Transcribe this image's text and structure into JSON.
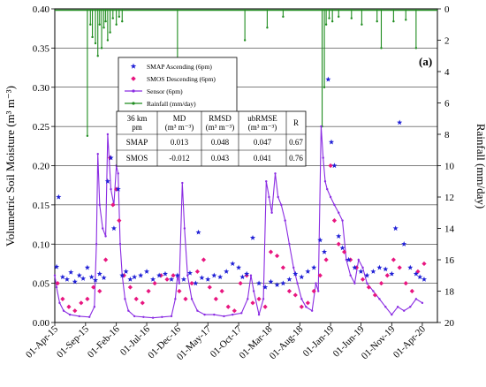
{
  "chart_data": {
    "type": "scatter",
    "panel_label": "(a)",
    "ylabel": "Volumetric Soil Moisture (m³ m⁻³)",
    "y2label": "Rainfall (mm/day)",
    "ylim": [
      0,
      0.4
    ],
    "y_ticks": [
      "0.00",
      "0.05",
      "0.10",
      "0.15",
      "0.20",
      "0.25",
      "0.30",
      "0.35",
      "0.40"
    ],
    "y2lim": [
      0,
      20
    ],
    "y2_inverted": true,
    "y2_ticks": [
      "0",
      "2",
      "4",
      "6",
      "8",
      "10",
      "12",
      "14",
      "16",
      "18",
      "20"
    ],
    "x_ticks": [
      "01-Apr-15",
      "01-Sep-15",
      "01-Feb-16",
      "01-Jul-16",
      "01-Dec-16",
      "01-May-17",
      "01-Oct-17",
      "01-Mar-18",
      "01-Aug-18",
      "01-Jan-19",
      "01-Jun-19",
      "01-Nov-19",
      "01-Apr-20"
    ],
    "grid": "horizontal",
    "legend_placement": "top-left",
    "series": [
      {
        "name": "SMAP Ascending (6pm)",
        "color": "#1f1fd6",
        "marker": "star",
        "points": [
          [
            "2015-04-10",
            0.071
          ],
          [
            "2015-04-20",
            0.16
          ],
          [
            "2015-05-10",
            0.058
          ],
          [
            "2015-06-01",
            0.055
          ],
          [
            "2015-06-20",
            0.064
          ],
          [
            "2015-07-10",
            0.052
          ],
          [
            "2015-08-01",
            0.06
          ],
          [
            "2015-08-20",
            0.056
          ],
          [
            "2015-09-10",
            0.07
          ],
          [
            "2015-10-01",
            0.058
          ],
          [
            "2015-10-20",
            0.054
          ],
          [
            "2015-11-10",
            0.062
          ],
          [
            "2015-12-01",
            0.057
          ],
          [
            "2015-12-20",
            0.18
          ],
          [
            "2016-01-05",
            0.21
          ],
          [
            "2016-01-20",
            0.12
          ],
          [
            "2016-02-10",
            0.17
          ],
          [
            "2016-03-01",
            0.06
          ],
          [
            "2016-03-20",
            0.065
          ],
          [
            "2016-04-10",
            0.055
          ],
          [
            "2016-05-01",
            0.058
          ],
          [
            "2016-06-01",
            0.06
          ],
          [
            "2016-07-01",
            0.065
          ],
          [
            "2016-08-01",
            0.055
          ],
          [
            "2016-09-01",
            0.06
          ],
          [
            "2016-10-01",
            0.062
          ],
          [
            "2016-11-01",
            0.055
          ],
          [
            "2016-12-01",
            0.06
          ],
          [
            "2017-01-01",
            0.055
          ],
          [
            "2017-02-01",
            0.063
          ],
          [
            "2017-03-01",
            0.05
          ],
          [
            "2017-03-15",
            0.115
          ],
          [
            "2017-04-01",
            0.057
          ],
          [
            "2017-05-01",
            0.055
          ],
          [
            "2017-06-01",
            0.06
          ],
          [
            "2017-07-01",
            0.058
          ],
          [
            "2017-08-01",
            0.065
          ],
          [
            "2017-09-01",
            0.075
          ],
          [
            "2017-10-01",
            0.07
          ],
          [
            "2017-10-20",
            0.058
          ],
          [
            "2017-11-10",
            0.062
          ],
          [
            "2017-12-10",
            0.108
          ],
          [
            "2018-01-10",
            0.05
          ],
          [
            "2018-02-10",
            0.045
          ],
          [
            "2018-03-10",
            0.052
          ],
          [
            "2018-04-10",
            0.048
          ],
          [
            "2018-05-10",
            0.05
          ],
          [
            "2018-06-10",
            0.055
          ],
          [
            "2018-07-10",
            0.062
          ],
          [
            "2018-08-10",
            0.058
          ],
          [
            "2018-09-10",
            0.065
          ],
          [
            "2018-10-10",
            0.07
          ],
          [
            "2018-11-10",
            0.105
          ],
          [
            "2018-12-01",
            0.09
          ],
          [
            "2018-12-20",
            0.31
          ],
          [
            "2019-01-05",
            0.23
          ],
          [
            "2019-01-20",
            0.2
          ],
          [
            "2019-02-10",
            0.11
          ],
          [
            "2019-03-01",
            0.095
          ],
          [
            "2019-04-01",
            0.08
          ],
          [
            "2019-05-01",
            0.07
          ],
          [
            "2019-06-01",
            0.065
          ],
          [
            "2019-07-01",
            0.06
          ],
          [
            "2019-08-01",
            0.065
          ],
          [
            "2019-09-01",
            0.07
          ],
          [
            "2019-10-01",
            0.068
          ],
          [
            "2019-11-01",
            0.062
          ],
          [
            "2019-11-20",
            0.12
          ],
          [
            "2019-12-10",
            0.255
          ],
          [
            "2020-01-01",
            0.1
          ],
          [
            "2020-02-01",
            0.07
          ],
          [
            "2020-03-01",
            0.062
          ],
          [
            "2020-03-20",
            0.058
          ],
          [
            "2020-04-10",
            0.055
          ]
        ]
      },
      {
        "name": "SMOS Descending (6pm)",
        "color": "#e8157f",
        "marker": "diamond",
        "points": [
          [
            "2015-04-15",
            0.05
          ],
          [
            "2015-05-10",
            0.03
          ],
          [
            "2015-06-10",
            0.02
          ],
          [
            "2015-07-10",
            0.015
          ],
          [
            "2015-08-10",
            0.025
          ],
          [
            "2015-09-10",
            0.03
          ],
          [
            "2015-10-10",
            0.045
          ],
          [
            "2015-11-10",
            0.04
          ],
          [
            "2015-12-10",
            0.08
          ],
          [
            "2016-01-01",
            0.21
          ],
          [
            "2016-01-15",
            0.15
          ],
          [
            "2016-02-01",
            0.17
          ],
          [
            "2016-02-15",
            0.13
          ],
          [
            "2016-03-10",
            0.06
          ],
          [
            "2016-04-10",
            0.045
          ],
          [
            "2016-05-10",
            0.03
          ],
          [
            "2016-06-10",
            0.025
          ],
          [
            "2016-07-10",
            0.04
          ],
          [
            "2016-08-10",
            0.05
          ],
          [
            "2016-09-10",
            0.06
          ],
          [
            "2016-10-10",
            0.055
          ],
          [
            "2016-11-10",
            0.06
          ],
          [
            "2016-12-10",
            0.04
          ],
          [
            "2017-01-10",
            0.03
          ],
          [
            "2017-02-10",
            0.05
          ],
          [
            "2017-03-10",
            0.065
          ],
          [
            "2017-04-10",
            0.08
          ],
          [
            "2017-05-10",
            0.045
          ],
          [
            "2017-06-10",
            0.03
          ],
          [
            "2017-07-10",
            0.04
          ],
          [
            "2017-08-10",
            0.02
          ],
          [
            "2017-09-10",
            0.015
          ],
          [
            "2017-10-10",
            0.05
          ],
          [
            "2017-11-10",
            0.06
          ],
          [
            "2017-12-10",
            0.025
          ],
          [
            "2018-01-10",
            0.03
          ],
          [
            "2018-02-10",
            0.02
          ],
          [
            "2018-03-10",
            0.09
          ],
          [
            "2018-04-10",
            0.085
          ],
          [
            "2018-05-10",
            0.07
          ],
          [
            "2018-06-10",
            0.04
          ],
          [
            "2018-07-10",
            0.035
          ],
          [
            "2018-08-10",
            0.02
          ],
          [
            "2018-09-10",
            0.025
          ],
          [
            "2018-10-10",
            0.04
          ],
          [
            "2018-11-10",
            0.06
          ],
          [
            "2018-12-10",
            0.08
          ],
          [
            "2019-01-01",
            0.2
          ],
          [
            "2019-01-20",
            0.13
          ],
          [
            "2019-02-10",
            0.1
          ],
          [
            "2019-03-10",
            0.09
          ],
          [
            "2019-04-10",
            0.08
          ],
          [
            "2019-05-10",
            0.07
          ],
          [
            "2019-06-10",
            0.055
          ],
          [
            "2019-07-10",
            0.045
          ],
          [
            "2019-08-10",
            0.035
          ],
          [
            "2019-09-10",
            0.05
          ],
          [
            "2019-10-10",
            0.06
          ],
          [
            "2019-11-10",
            0.08
          ],
          [
            "2019-12-10",
            0.07
          ],
          [
            "2020-01-10",
            0.05
          ],
          [
            "2020-02-10",
            0.04
          ],
          [
            "2020-03-10",
            0.065
          ],
          [
            "2020-04-10",
            0.075
          ]
        ]
      },
      {
        "name": "Sensor (6pm)",
        "color": "#8a2be2",
        "marker": "line-dot",
        "points": [
          [
            "2015-04-01",
            0.06
          ],
          [
            "2015-04-10",
            0.045
          ],
          [
            "2015-04-25",
            0.025
          ],
          [
            "2015-05-15",
            0.015
          ],
          [
            "2015-06-15",
            0.01
          ],
          [
            "2015-08-01",
            0.008
          ],
          [
            "2015-09-20",
            0.007
          ],
          [
            "2015-10-15",
            0.02
          ],
          [
            "2015-10-25",
            0.1
          ],
          [
            "2015-11-01",
            0.215
          ],
          [
            "2015-11-10",
            0.15
          ],
          [
            "2015-11-25",
            0.12
          ],
          [
            "2015-12-10",
            0.11
          ],
          [
            "2015-12-20",
            0.24
          ],
          [
            "2016-01-05",
            0.17
          ],
          [
            "2016-01-20",
            0.15
          ],
          [
            "2016-02-01",
            0.2
          ],
          [
            "2016-02-10",
            0.19
          ],
          [
            "2016-02-20",
            0.1
          ],
          [
            "2016-03-01",
            0.06
          ],
          [
            "2016-03-15",
            0.03
          ],
          [
            "2016-04-01",
            0.015
          ],
          [
            "2016-05-01",
            0.008
          ],
          [
            "2016-06-15",
            0.007
          ],
          [
            "2016-08-01",
            0.006
          ],
          [
            "2016-09-15",
            0.007
          ],
          [
            "2016-11-01",
            0.008
          ],
          [
            "2016-11-20",
            0.03
          ],
          [
            "2016-12-01",
            0.06
          ],
          [
            "2016-12-10",
            0.05
          ],
          [
            "2016-12-25",
            0.178
          ],
          [
            "2017-01-05",
            0.12
          ],
          [
            "2017-01-20",
            0.06
          ],
          [
            "2017-02-10",
            0.03
          ],
          [
            "2017-03-10",
            0.015
          ],
          [
            "2017-04-15",
            0.01
          ],
          [
            "2017-06-01",
            0.01
          ],
          [
            "2017-07-20",
            0.008
          ],
          [
            "2017-09-01",
            0.01
          ],
          [
            "2017-10-15",
            0.012
          ],
          [
            "2017-11-15",
            0.03
          ],
          [
            "2017-12-01",
            0.06
          ],
          [
            "2017-12-15",
            0.04
          ],
          [
            "2018-01-10",
            0.01
          ],
          [
            "2018-02-01",
            0.03
          ],
          [
            "2018-02-15",
            0.18
          ],
          [
            "2018-03-01",
            0.16
          ],
          [
            "2018-03-15",
            0.14
          ],
          [
            "2018-04-01",
            0.19
          ],
          [
            "2018-04-15",
            0.16
          ],
          [
            "2018-05-01",
            0.15
          ],
          [
            "2018-05-20",
            0.13
          ],
          [
            "2018-06-10",
            0.1
          ],
          [
            "2018-07-01",
            0.07
          ],
          [
            "2018-07-20",
            0.05
          ],
          [
            "2018-08-10",
            0.03
          ],
          [
            "2018-09-01",
            0.02
          ],
          [
            "2018-10-01",
            0.015
          ],
          [
            "2018-10-20",
            0.05
          ],
          [
            "2018-11-01",
            0.04
          ],
          [
            "2018-11-15",
            0.25
          ],
          [
            "2018-11-25",
            0.21
          ],
          [
            "2018-12-05",
            0.18
          ],
          [
            "2018-12-15",
            0.17
          ],
          [
            "2019-01-01",
            0.16
          ],
          [
            "2019-01-20",
            0.15
          ],
          [
            "2019-02-10",
            0.14
          ],
          [
            "2019-03-01",
            0.13
          ],
          [
            "2019-03-20",
            0.08
          ],
          [
            "2019-04-10",
            0.06
          ],
          [
            "2019-05-01",
            0.05
          ],
          [
            "2019-05-20",
            0.08
          ],
          [
            "2019-06-10",
            0.07
          ],
          [
            "2019-07-01",
            0.05
          ],
          [
            "2019-08-01",
            0.04
          ],
          [
            "2019-09-01",
            0.03
          ],
          [
            "2019-10-01",
            0.02
          ],
          [
            "2019-11-01",
            0.01
          ],
          [
            "2019-12-01",
            0.02
          ],
          [
            "2020-01-01",
            0.015
          ],
          [
            "2020-02-01",
            0.02
          ],
          [
            "2020-03-01",
            0.03
          ],
          [
            "2020-04-01",
            0.025
          ]
        ]
      },
      {
        "name": "Rainfall (mm/day)",
        "color": "#1e8c1e",
        "marker": "bar-line",
        "axis": "right",
        "points": [
          [
            "2015-09-10",
            8.1
          ],
          [
            "2015-09-25",
            1.0
          ],
          [
            "2015-10-05",
            1.8
          ],
          [
            "2015-10-20",
            2.2
          ],
          [
            "2015-11-01",
            3.0
          ],
          [
            "2015-11-10",
            1.0
          ],
          [
            "2015-11-20",
            2.5
          ],
          [
            "2015-12-01",
            1.2
          ],
          [
            "2015-12-10",
            0.8
          ],
          [
            "2015-12-20",
            2.0
          ],
          [
            "2016-01-01",
            1.5
          ],
          [
            "2016-01-15",
            0.6
          ],
          [
            "2016-02-01",
            1.0
          ],
          [
            "2016-02-15",
            0.5
          ],
          [
            "2016-03-01",
            0.8
          ],
          [
            "2016-12-01",
            4.2
          ],
          [
            "2017-11-01",
            2.0
          ],
          [
            "2018-02-20",
            1.2
          ],
          [
            "2018-05-10",
            0.5
          ],
          [
            "2018-11-20",
            7.5
          ],
          [
            "2018-12-01",
            5.0
          ],
          [
            "2018-12-10",
            1.0
          ],
          [
            "2018-12-25",
            0.6
          ],
          [
            "2019-01-10",
            0.8
          ],
          [
            "2019-02-10",
            0.5
          ],
          [
            "2019-04-15",
            0.6
          ],
          [
            "2019-06-05",
            1.0
          ],
          [
            "2019-08-20",
            0.8
          ],
          [
            "2019-09-10",
            2.5
          ],
          [
            "2019-11-10",
            0.8
          ],
          [
            "2020-01-10",
            0.7
          ],
          [
            "2020-03-01",
            2.5
          ]
        ]
      }
    ]
  },
  "stats_table": {
    "header": [
      "36 km\npm",
      "MD\n(m³ m⁻³)",
      "RMSD\n(m³ m⁻³)",
      "ubRMSE\n(m³ m⁻³)",
      "R"
    ],
    "rows": [
      [
        "SMAP",
        "0.013",
        "0.048",
        "0.047",
        "0.67"
      ],
      [
        "SMOS",
        "-0.012",
        "0.043",
        "0.041",
        "0.76"
      ]
    ]
  }
}
